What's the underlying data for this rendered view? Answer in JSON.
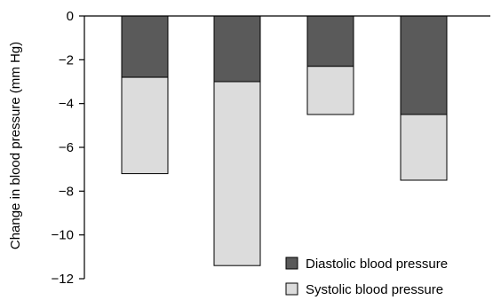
{
  "chart_data": {
    "type": "bar",
    "stacked": true,
    "title": "",
    "xlabel": "",
    "ylabel": "Change in blood pressure (mm Hg)",
    "ylim": [
      -12,
      0
    ],
    "yticks": [
      0,
      -2,
      -4,
      -6,
      -8,
      -10,
      -12
    ],
    "ytick_labels": [
      "0",
      "−2",
      "−4",
      "−6",
      "−8",
      "−10",
      "−12"
    ],
    "grid": false,
    "legend_position": "bottom-right",
    "categories": [
      "",
      "",
      "",
      ""
    ],
    "series": [
      {
        "name": "Diastolic blood pressure",
        "color": "#5a5a5a",
        "values": [
          -2.8,
          -3.0,
          -2.3,
          -4.5
        ]
      },
      {
        "name": "Systolic blood pressure",
        "color": "#dcdcdc",
        "values": [
          -4.4,
          -8.4,
          -2.2,
          -3.0
        ]
      }
    ]
  }
}
